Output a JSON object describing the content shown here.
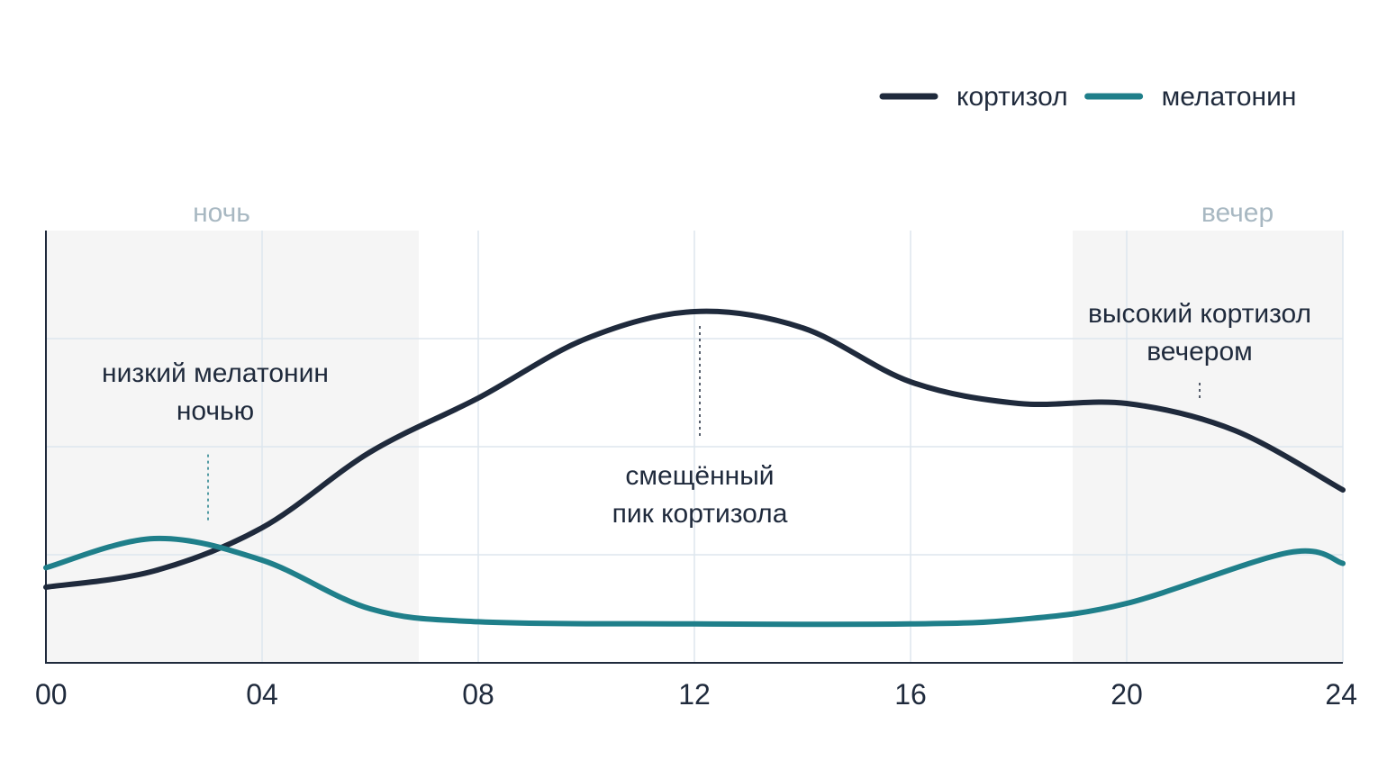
{
  "chart_data": {
    "type": "line",
    "x_ticks": [
      "00",
      "04",
      "08",
      "12",
      "16",
      "20",
      "24"
    ],
    "xlim": [
      0,
      24
    ],
    "ylim": [
      0,
      4
    ],
    "y_gridlines": [
      1,
      2,
      3
    ],
    "grid": true,
    "legend_position": "top-right",
    "series": [
      {
        "name": "кортизол",
        "color": "#1f2a3c",
        "points": [
          [
            0,
            0.7
          ],
          [
            2,
            0.85
          ],
          [
            4,
            1.25
          ],
          [
            6,
            1.95
          ],
          [
            8,
            2.45
          ],
          [
            10,
            3.0
          ],
          [
            12,
            3.25
          ],
          [
            14,
            3.1
          ],
          [
            16,
            2.6
          ],
          [
            18,
            2.4
          ],
          [
            20,
            2.4
          ],
          [
            22,
            2.15
          ],
          [
            24,
            1.6
          ]
        ]
      },
      {
        "name": "мелатонин",
        "color": "#1f7f8a",
        "points": [
          [
            0,
            0.88
          ],
          [
            2,
            1.15
          ],
          [
            4,
            0.95
          ],
          [
            6,
            0.5
          ],
          [
            8,
            0.38
          ],
          [
            12,
            0.36
          ],
          [
            16,
            0.36
          ],
          [
            18,
            0.4
          ],
          [
            20,
            0.55
          ],
          [
            23,
            1.02
          ],
          [
            24,
            0.92
          ]
        ]
      }
    ],
    "bands": [
      {
        "label": "ночь",
        "from": 0,
        "to": 6.9,
        "color": "#f5f5f5"
      },
      {
        "label": "вечер",
        "from": 19,
        "to": 24,
        "color": "#f5f5f5"
      }
    ],
    "annotations": [
      {
        "lines": [
          "низкий мелатонин",
          "ночью"
        ],
        "x": 3.0,
        "y_text": 2.6,
        "y_from": 1.32,
        "y_to": 1.95
      },
      {
        "lines": [
          "смещённый",
          "пик кортизола"
        ],
        "x": 12.1,
        "y_text": 1.65,
        "y_from": 2.1,
        "y_to": 3.15
      },
      {
        "lines": [
          "высокий кортизол",
          "вечером"
        ],
        "x": 21.35,
        "y_text": 3.15,
        "y_from": 2.45,
        "y_to": 2.6
      }
    ]
  }
}
